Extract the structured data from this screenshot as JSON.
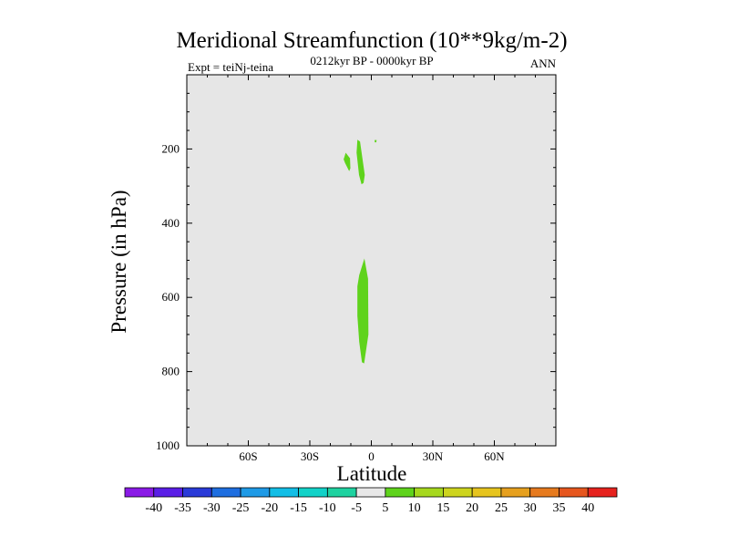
{
  "chart_data": {
    "type": "filled-contour",
    "title": "Meridional Streamfunction (10**9kg/m-2)",
    "subtitle_center": "0212kyr BP - 0000kyr BP",
    "subtitle_left": "Expt = teiNj-teina",
    "subtitle_right": "ANN",
    "xlabel": "Latitude",
    "ylabel": "Pressure (in hPa)",
    "xlim": [
      -90,
      90
    ],
    "ylim": [
      1000,
      0
    ],
    "x_ticks": [
      {
        "value": -60,
        "label": "60S"
      },
      {
        "value": -30,
        "label": "30S"
      },
      {
        "value": 0,
        "label": "0"
      },
      {
        "value": 30,
        "label": "30N"
      },
      {
        "value": 60,
        "label": "60N"
      }
    ],
    "y_ticks": [
      {
        "value": 200,
        "label": "200"
      },
      {
        "value": 400,
        "label": "400"
      },
      {
        "value": 600,
        "label": "600"
      },
      {
        "value": 800,
        "label": "800"
      },
      {
        "value": 1000,
        "label": "1000"
      }
    ],
    "background_color": "#e6e6e6",
    "contour_regions": [
      {
        "name": "upper-left-cell",
        "level": "5 to 10",
        "color": "#5fd31c",
        "points": [
          [
            -12.5,
            210
          ],
          [
            -10.4,
            225
          ],
          [
            -10.2,
            252
          ],
          [
            -10.8,
            260
          ],
          [
            -12.8,
            238
          ],
          [
            -13.5,
            228
          ]
        ]
      },
      {
        "name": "upper-main-cell",
        "level": "5 to 10",
        "color": "#5fd31c",
        "points": [
          [
            -6.8,
            175
          ],
          [
            -5.5,
            180
          ],
          [
            -3.2,
            270
          ],
          [
            -3.8,
            292
          ],
          [
            -4.8,
            295
          ],
          [
            -6.0,
            270
          ],
          [
            -7.2,
            210
          ]
        ]
      },
      {
        "name": "upper-dot",
        "level": "5 to 10",
        "color": "#5fd31c",
        "points": [
          [
            1.6,
            176
          ],
          [
            2.6,
            176
          ],
          [
            2.4,
            182
          ],
          [
            1.7,
            182
          ]
        ]
      },
      {
        "name": "lower-main-cell",
        "level": "5 to 10",
        "color": "#5fd31c",
        "points": [
          [
            -3.4,
            495
          ],
          [
            -1.6,
            550
          ],
          [
            -1.4,
            700
          ],
          [
            -3.5,
            778
          ],
          [
            -4.6,
            775
          ],
          [
            -5.9,
            720
          ],
          [
            -6.8,
            650
          ],
          [
            -6.8,
            570
          ],
          [
            -5.9,
            540
          ]
        ]
      }
    ],
    "colorbar": {
      "levels": [
        "-40",
        "-35",
        "-30",
        "-25",
        "-20",
        "-15",
        "-10",
        "-5",
        "5",
        "10",
        "15",
        "20",
        "25",
        "30",
        "35",
        "40"
      ],
      "colors": [
        "#8a1ae6",
        "#5a1ee6",
        "#2a3ad8",
        "#1e6ee0",
        "#1e9ae6",
        "#12bee6",
        "#12d2c8",
        "#1ed2a0",
        "#e8e8e8",
        "#5fd31c",
        "#a6d81e",
        "#cdd41e",
        "#e6c41e",
        "#e6a01e",
        "#e67a1e",
        "#e6561e",
        "#e6221e"
      ]
    }
  }
}
